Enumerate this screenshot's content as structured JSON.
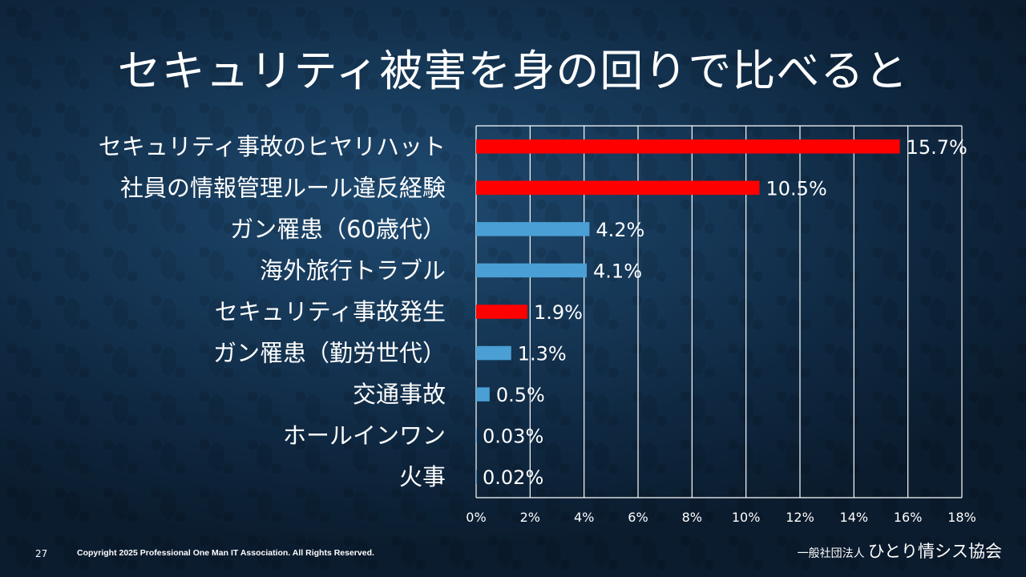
{
  "slide": {
    "title": "セキュリティ被害を身の回りで比べると",
    "page_number": "27",
    "copyright": "Copyright 2025 Professional One Man IT Association. All Rights Reserved.",
    "org_prefix": "一般社団法人",
    "org_name": "ひとり情シス協会"
  },
  "colors": {
    "security": "#ff0000",
    "comparison": "#4a9fd4",
    "gridline": "#ffffff",
    "text": "#ffffff"
  },
  "chart_data": {
    "type": "bar",
    "orientation": "horizontal",
    "title": "セキュリティ被害を身の回りで比べると",
    "xlabel": "",
    "ylabel": "",
    "xlim": [
      0,
      18
    ],
    "x_ticks": [
      0,
      2,
      4,
      6,
      8,
      10,
      12,
      14,
      16,
      18
    ],
    "x_tick_labels": [
      "0%",
      "2%",
      "4%",
      "6%",
      "8%",
      "10%",
      "12%",
      "14%",
      "16%",
      "18%"
    ],
    "grid": true,
    "legend": "none",
    "categories": [
      "セキュリティ事故のヒヤリハット",
      "社員の情報管理ルール違反経験",
      "ガン罹患（60歳代）",
      "海外旅行トラブル",
      "セキュリティ事故発生",
      "ガン罹患（勤労世代）",
      "交通事故",
      "ホールインワン",
      "火事"
    ],
    "values": [
      15.7,
      10.5,
      4.2,
      4.1,
      1.9,
      1.3,
      0.5,
      0.03,
      0.02
    ],
    "value_labels": [
      "15.7%",
      "10.5%",
      "4.2%",
      "4.1%",
      "1.9%",
      "1.3%",
      "0.5%",
      "0.03%",
      "0.02%"
    ],
    "bar_groups": [
      "security",
      "security",
      "comparison",
      "comparison",
      "security",
      "comparison",
      "comparison",
      "comparison",
      "comparison"
    ]
  }
}
